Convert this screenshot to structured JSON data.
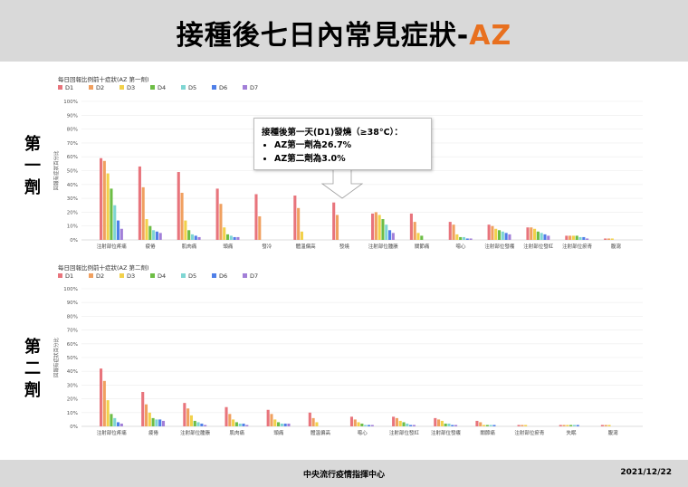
{
  "page": {
    "title_main": "接種後七日內常見症狀-",
    "title_accent": "AZ",
    "dose1_label": "第一劑",
    "dose2_label": "第二劑",
    "footer_org": "中央流行疫情指揮中心",
    "footer_date": "2021/12/22"
  },
  "callout": {
    "heading": "接種後第一天(D1)發燒（≥38°C）：",
    "items": [
      "AZ第一劑為26.7%",
      "AZ第二劑為3.0%"
    ]
  },
  "colors": [
    "#e8747c",
    "#f0a060",
    "#f2d14b",
    "#6dbd45",
    "#7fd6d3",
    "#4f7fe8",
    "#a27fd8"
  ],
  "chart_data": [
    {
      "type": "bar",
      "title": "每日回報比例前十症狀(AZ 第一劑)",
      "ylabel": "回報有症狀百分比",
      "ylim": [
        0,
        100
      ],
      "yticks": [
        "0%",
        "10%",
        "20%",
        "30%",
        "40%",
        "50%",
        "60%",
        "70%",
        "80%",
        "90%",
        "100%"
      ],
      "legend_position": "top-left",
      "categories": [
        "注射部位疼痛",
        "疲倦",
        "肌肉痛",
        "頭痛",
        "發冷",
        "體溫偏高",
        "發燒",
        "注射部位腫脹",
        "關節痛",
        "噁心",
        "注射部位發癢",
        "注射部位發紅",
        "注射部位瘀青",
        "腹瀉"
      ],
      "series": [
        {
          "name": "D1",
          "values": [
            59,
            53,
            49,
            37,
            33,
            32,
            27,
            19,
            19,
            13,
            11,
            9,
            3,
            1
          ]
        },
        {
          "name": "D2",
          "values": [
            57,
            38,
            34,
            26,
            17,
            23,
            18,
            20,
            13,
            11,
            10,
            9,
            3,
            1
          ]
        },
        {
          "name": "D3",
          "values": [
            48,
            15,
            14,
            9,
            0,
            6,
            0,
            18,
            5,
            4,
            8,
            8,
            3,
            1
          ]
        },
        {
          "name": "D4",
          "values": [
            37,
            10,
            7,
            4,
            0,
            0,
            0,
            15,
            3,
            2,
            7,
            6,
            3,
            0
          ]
        },
        {
          "name": "D5",
          "values": [
            25,
            7,
            4,
            3,
            0,
            0,
            0,
            11,
            0,
            2,
            6,
            5,
            2,
            0
          ]
        },
        {
          "name": "D6",
          "values": [
            14,
            6,
            3,
            2,
            0,
            0,
            0,
            7,
            0,
            1,
            5,
            4,
            2,
            0
          ]
        },
        {
          "name": "D7",
          "values": [
            8,
            5,
            2,
            2,
            0,
            0,
            0,
            5,
            0,
            1,
            4,
            3,
            1,
            0
          ]
        }
      ]
    },
    {
      "type": "bar",
      "title": "每日回報比例前十症狀(AZ 第二劑)",
      "ylabel": "回報有症狀百分比",
      "ylim": [
        0,
        100
      ],
      "yticks": [
        "0%",
        "10%",
        "20%",
        "30%",
        "40%",
        "50%",
        "60%",
        "70%",
        "80%",
        "90%",
        "100%"
      ],
      "legend_position": "top-left",
      "categories": [
        "注射部位疼痛",
        "疲倦",
        "注射部位腫脹",
        "肌肉痛",
        "頭痛",
        "體溫偏高",
        "噁心",
        "注射部位發紅",
        "注射部位發癢",
        "關節痛",
        "注射部位瘀青",
        "失眠",
        "腹瀉"
      ],
      "series": [
        {
          "name": "D1",
          "values": [
            42,
            25,
            17,
            14,
            12,
            10,
            7,
            7,
            6,
            4,
            1,
            1,
            1
          ]
        },
        {
          "name": "D2",
          "values": [
            33,
            16,
            13,
            9,
            9,
            6,
            5,
            6,
            5,
            3,
            1,
            1,
            1
          ]
        },
        {
          "name": "D3",
          "values": [
            19,
            10,
            8,
            5,
            5,
            3,
            3,
            4,
            4,
            1,
            1,
            1,
            1
          ]
        },
        {
          "name": "D4",
          "values": [
            9,
            6,
            4,
            3,
            3,
            0,
            2,
            3,
            2,
            1,
            0,
            1,
            0
          ]
        },
        {
          "name": "D5",
          "values": [
            6,
            5,
            3,
            2,
            2,
            0,
            1,
            2,
            2,
            1,
            0,
            1,
            0
          ]
        },
        {
          "name": "D6",
          "values": [
            3,
            5,
            2,
            2,
            2,
            0,
            1,
            1,
            1,
            1,
            0,
            1,
            0
          ]
        },
        {
          "name": "D7",
          "values": [
            2,
            4,
            1,
            1,
            2,
            0,
            1,
            1,
            1,
            0,
            0,
            0,
            0
          ]
        }
      ]
    }
  ]
}
